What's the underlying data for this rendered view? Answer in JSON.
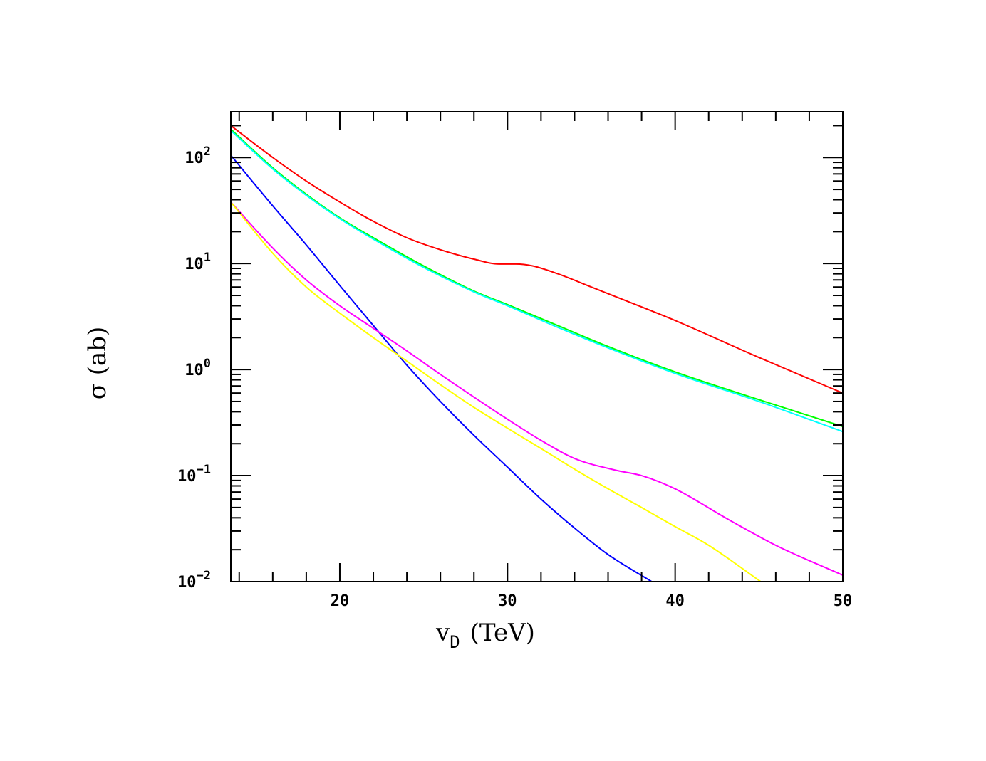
{
  "chart_data": {
    "type": "line",
    "title": "",
    "xlabel": "v",
    "xlabel_sub": "D",
    "xlabel_unit": "(TeV)",
    "ylabel": "σ (ab)",
    "xlim": [
      13.5,
      50
    ],
    "ylim": [
      0.01,
      270
    ],
    "yscale": "log",
    "grid": false,
    "x_ticks": [
      {
        "value": 20,
        "label": "20"
      },
      {
        "value": 30,
        "label": "30"
      },
      {
        "value": 40,
        "label": "40"
      },
      {
        "value": 50,
        "label": "50"
      }
    ],
    "y_ticks": [
      {
        "value": 0.01,
        "base": "10",
        "exp": "−2"
      },
      {
        "value": 0.1,
        "base": "10",
        "exp": "−1"
      },
      {
        "value": 1,
        "base": "10",
        "exp": "0"
      },
      {
        "value": 10,
        "base": "10",
        "exp": "1"
      },
      {
        "value": 100,
        "base": "10",
        "exp": "2"
      }
    ],
    "series": [
      {
        "color": "#ff0000",
        "x": [
          13.5,
          16,
          18,
          20,
          22,
          24,
          26,
          28,
          29.5,
          30.5,
          31.5,
          33,
          35,
          37,
          40,
          45,
          50
        ],
        "y": [
          200,
          100,
          60,
          38,
          25,
          17.5,
          13.5,
          11,
          9.9,
          9.9,
          9.5,
          8,
          6,
          4.5,
          2.9,
          1.3,
          0.6
        ]
      },
      {
        "color": "#00ff00",
        "x": [
          13.5,
          16,
          18,
          20,
          22,
          25,
          28,
          30,
          33,
          36,
          40,
          45,
          50
        ],
        "y": [
          185,
          80,
          45,
          27,
          17.5,
          9.5,
          5.5,
          4.1,
          2.6,
          1.65,
          0.95,
          0.52,
          0.29
        ]
      },
      {
        "color": "#00ffff",
        "x": [
          13.5,
          16,
          18,
          20,
          22,
          25,
          28,
          30,
          33,
          36,
          40,
          45,
          50
        ],
        "y": [
          180,
          78,
          44,
          26.5,
          17,
          9.2,
          5.4,
          4.0,
          2.5,
          1.6,
          0.92,
          0.5,
          0.26
        ]
      },
      {
        "color": "#0000ff",
        "x": [
          13.5,
          16,
          18,
          20,
          22,
          24,
          26,
          28,
          30,
          32,
          34,
          36,
          38.6
        ],
        "y": [
          105,
          35,
          15,
          6.2,
          2.6,
          1.1,
          0.5,
          0.24,
          0.12,
          0.06,
          0.032,
          0.018,
          0.01
        ]
      },
      {
        "color": "#ff00ff",
        "x": [
          13.5,
          16,
          18,
          20,
          22,
          24,
          26,
          28,
          30,
          32,
          34,
          36.5,
          38,
          40,
          43,
          46,
          50
        ],
        "y": [
          38,
          14,
          7,
          4,
          2.45,
          1.5,
          0.9,
          0.55,
          0.34,
          0.215,
          0.145,
          0.112,
          0.1,
          0.075,
          0.04,
          0.022,
          0.0115
        ]
      },
      {
        "color": "#ffff00",
        "x": [
          13.5,
          16,
          18,
          20,
          22,
          24,
          26,
          28,
          30,
          32,
          34,
          36,
          38,
          40,
          42,
          45.1
        ],
        "y": [
          38,
          12.5,
          6,
          3.4,
          2.0,
          1.2,
          0.72,
          0.44,
          0.28,
          0.18,
          0.115,
          0.075,
          0.05,
          0.033,
          0.022,
          0.01
        ]
      }
    ]
  }
}
